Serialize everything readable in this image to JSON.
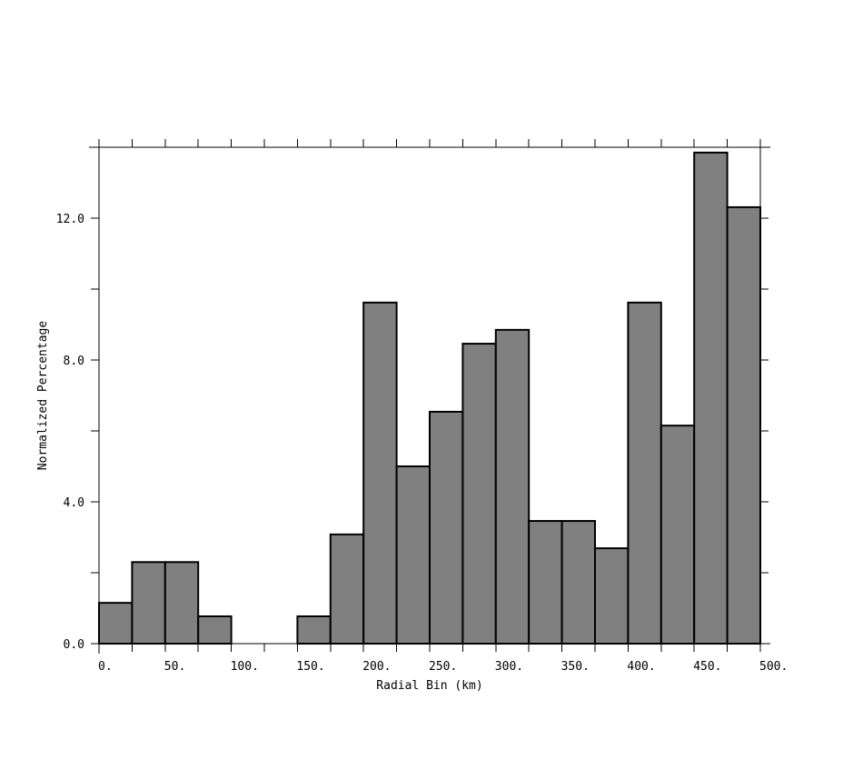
{
  "chart_data": {
    "type": "bar",
    "xlabel": "Radial Bin (km)",
    "ylabel": "Normalized Percentage",
    "bin_width": 25,
    "bins": [
      {
        "x0": 0,
        "x1": 25,
        "value": 1.15
      },
      {
        "x0": 25,
        "x1": 50,
        "value": 2.3
      },
      {
        "x0": 50,
        "x1": 75,
        "value": 2.3
      },
      {
        "x0": 75,
        "x1": 100,
        "value": 0.77
      },
      {
        "x0": 100,
        "x1": 125,
        "value": 0.0
      },
      {
        "x0": 125,
        "x1": 150,
        "value": 0.0
      },
      {
        "x0": 150,
        "x1": 175,
        "value": 0.77
      },
      {
        "x0": 175,
        "x1": 200,
        "value": 3.08
      },
      {
        "x0": 200,
        "x1": 225,
        "value": 9.62
      },
      {
        "x0": 225,
        "x1": 250,
        "value": 5.0
      },
      {
        "x0": 250,
        "x1": 275,
        "value": 6.54
      },
      {
        "x0": 275,
        "x1": 300,
        "value": 8.46
      },
      {
        "x0": 300,
        "x1": 325,
        "value": 8.85
      },
      {
        "x0": 325,
        "x1": 350,
        "value": 3.46
      },
      {
        "x0": 350,
        "x1": 375,
        "value": 3.46
      },
      {
        "x0": 375,
        "x1": 400,
        "value": 2.69
      },
      {
        "x0": 400,
        "x1": 425,
        "value": 9.62
      },
      {
        "x0": 425,
        "x1": 450,
        "value": 6.15
      },
      {
        "x0": 450,
        "x1": 475,
        "value": 13.85
      },
      {
        "x0": 475,
        "x1": 500,
        "value": 12.31
      }
    ],
    "xlim": [
      0,
      500
    ],
    "ylim": [
      0,
      14
    ],
    "x_ticks": [
      0,
      50,
      100,
      150,
      200,
      250,
      300,
      350,
      400,
      450,
      500
    ],
    "x_tick_labels": [
      "0.",
      "50.",
      "100.",
      "150.",
      "200.",
      "250.",
      "300.",
      "350.",
      "400.",
      "450.",
      "500."
    ],
    "x_minor_step": 25,
    "y_ticks": [
      0,
      4,
      8,
      12
    ],
    "y_tick_labels": [
      "0.0",
      "4.0",
      "8.0",
      "12.0"
    ],
    "y_minor_step": 2,
    "bar_color": "#808080",
    "edge_color": "#000000",
    "grid": false
  }
}
